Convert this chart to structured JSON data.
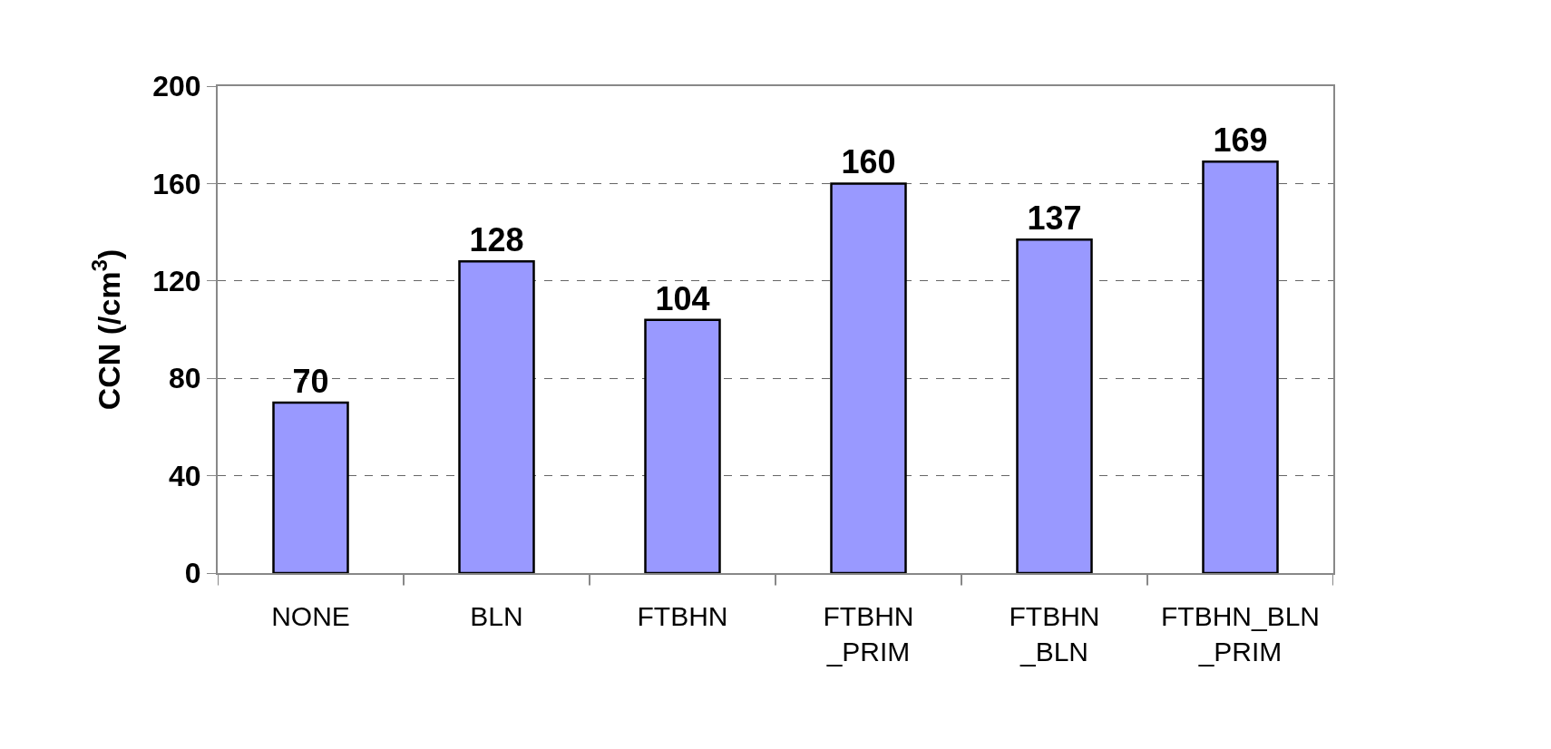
{
  "chart_data": {
    "type": "bar",
    "ylabel": "CCN (/cm$^{3}$)",
    "categories": [
      "NONE",
      "BLN",
      "FTBHN",
      "FTBHN\n_PRIM",
      "FTBHN\n_BLN",
      "FTBHN_BLN\n_PRIM"
    ],
    "values": [
      70,
      128,
      104,
      160,
      137,
      169
    ],
    "color": "#9999ff",
    "ylim": [
      0,
      200
    ],
    "yticks": [
      0,
      40,
      80,
      120,
      160,
      200
    ],
    "grid": "y",
    "data_labels": true
  }
}
